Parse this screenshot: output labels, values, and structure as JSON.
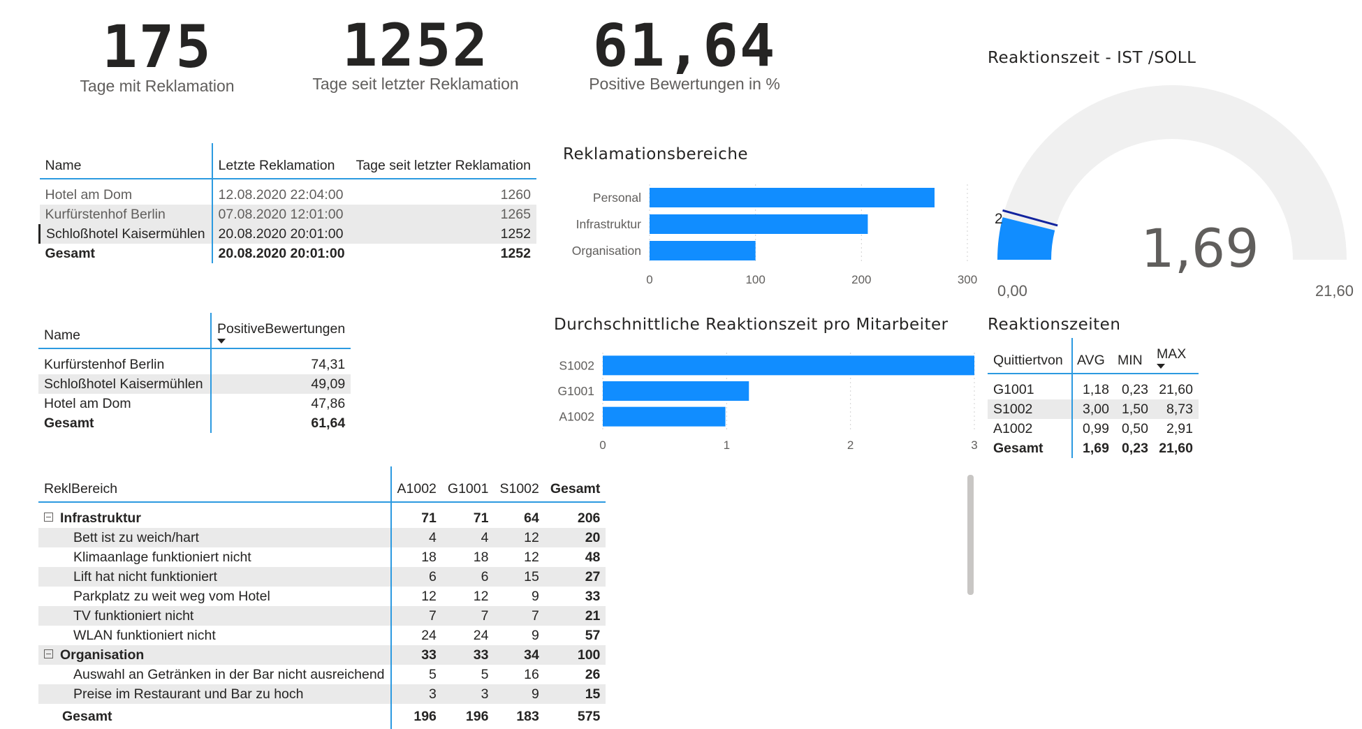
{
  "kpis": [
    {
      "value": "175",
      "label": "Tage mit Reklamation"
    },
    {
      "value": "1252",
      "label": "Tage seit letzter Reklamation"
    },
    {
      "value": "61,64",
      "label": "Positive Bewertungen in %"
    }
  ],
  "table_last": {
    "headers": [
      "Name",
      "Letzte Reklamation",
      "Tage seit letzter Reklamation"
    ],
    "rows": [
      [
        "Hotel am Dom",
        "12.08.2020 22:04:00",
        "1260"
      ],
      [
        "Kurfürstenhof Berlin",
        "07.08.2020 12:01:00",
        "1265"
      ],
      [
        "Schloßhotel Kaisermühlen",
        "20.08.2020 20:01:00",
        "1252"
      ]
    ],
    "total": [
      "Gesamt",
      "20.08.2020 20:01:00",
      "1252"
    ]
  },
  "table_positive": {
    "headers": [
      "Name",
      "PositiveBewertungen"
    ],
    "rows": [
      [
        "Kurfürstenhof Berlin",
        "74,31"
      ],
      [
        "Schloßhotel Kaisermühlen",
        "49,09"
      ],
      [
        "Hotel am Dom",
        "47,86"
      ]
    ],
    "total": [
      "Gesamt",
      "61,64"
    ]
  },
  "matrix": {
    "headers": [
      "ReklBereich",
      "A1002",
      "G1001",
      "S1002",
      "Gesamt"
    ],
    "groups": [
      {
        "name": "Infrastruktur",
        "values": [
          "71",
          "71",
          "64",
          "206"
        ],
        "children": [
          {
            "name": "Bett ist zu weich/hart",
            "values": [
              "4",
              "4",
              "12",
              "20"
            ]
          },
          {
            "name": "Klimaanlage funktioniert nicht",
            "values": [
              "18",
              "18",
              "12",
              "48"
            ]
          },
          {
            "name": "Lift hat nicht funktioniert",
            "values": [
              "6",
              "6",
              "15",
              "27"
            ]
          },
          {
            "name": "Parkplatz zu weit weg vom Hotel",
            "values": [
              "12",
              "12",
              "9",
              "33"
            ]
          },
          {
            "name": "TV funktioniert nicht",
            "values": [
              "7",
              "7",
              "7",
              "21"
            ]
          },
          {
            "name": "WLAN funktioniert nicht",
            "values": [
              "24",
              "24",
              "9",
              "57"
            ]
          }
        ]
      },
      {
        "name": "Organisation",
        "values": [
          "33",
          "33",
          "34",
          "100"
        ],
        "children": [
          {
            "name": "Auswahl an Getränken in der Bar nicht ausreichend",
            "values": [
              "5",
              "5",
              "16",
              "26"
            ]
          },
          {
            "name": "Preise im Restaurant und Bar zu hoch",
            "values": [
              "3",
              "3",
              "9",
              "15"
            ]
          }
        ]
      }
    ],
    "total": {
      "name": "Gesamt",
      "values": [
        "196",
        "196",
        "183",
        "575"
      ]
    }
  },
  "table_reaction": {
    "title": "Reaktionszeiten",
    "headers": [
      "Quittiertvon",
      "AVG",
      "MIN",
      "MAX"
    ],
    "rows": [
      [
        "G1001",
        "1,18",
        "0,23",
        "21,60"
      ],
      [
        "S1002",
        "3,00",
        "1,50",
        "8,73"
      ],
      [
        "A1002",
        "0,99",
        "0,50",
        "2,91"
      ]
    ],
    "total": [
      "Gesamt",
      "1,69",
      "0,23",
      "21,60"
    ]
  },
  "gauge": {
    "title": "Reaktionszeit - IST /SOLL",
    "value": 1.69,
    "value_label": "1,69",
    "min": 0,
    "min_label": "0,00",
    "max": 21.6,
    "max_label": "21,60",
    "target": 2,
    "target_label": "2",
    "fill_color": "#118dff",
    "track_color": "#f0f0f0",
    "target_color": "#12239e"
  },
  "chart_data": [
    {
      "type": "bar",
      "orientation": "horizontal",
      "title": "Reklamationsbereiche",
      "categories": [
        "Personal",
        "Infrastruktur",
        "Organisation"
      ],
      "values": [
        269,
        206,
        100
      ],
      "xlim": [
        0,
        300
      ],
      "ticks": [
        0,
        100,
        200,
        300
      ],
      "tick_labels": [
        "0",
        "100",
        "200",
        "300"
      ],
      "grid": true,
      "color": "#118dff"
    },
    {
      "type": "bar",
      "orientation": "horizontal",
      "title": "Durchschnittliche Reaktionszeit pro Mitarbeiter",
      "categories": [
        "S1002",
        "G1001",
        "A1002"
      ],
      "values": [
        3.0,
        1.18,
        0.99
      ],
      "xlim": [
        0,
        3
      ],
      "ticks": [
        0,
        1,
        2,
        3
      ],
      "tick_labels": [
        "0",
        "1",
        "2",
        "3"
      ],
      "grid": true,
      "color": "#118dff"
    }
  ]
}
